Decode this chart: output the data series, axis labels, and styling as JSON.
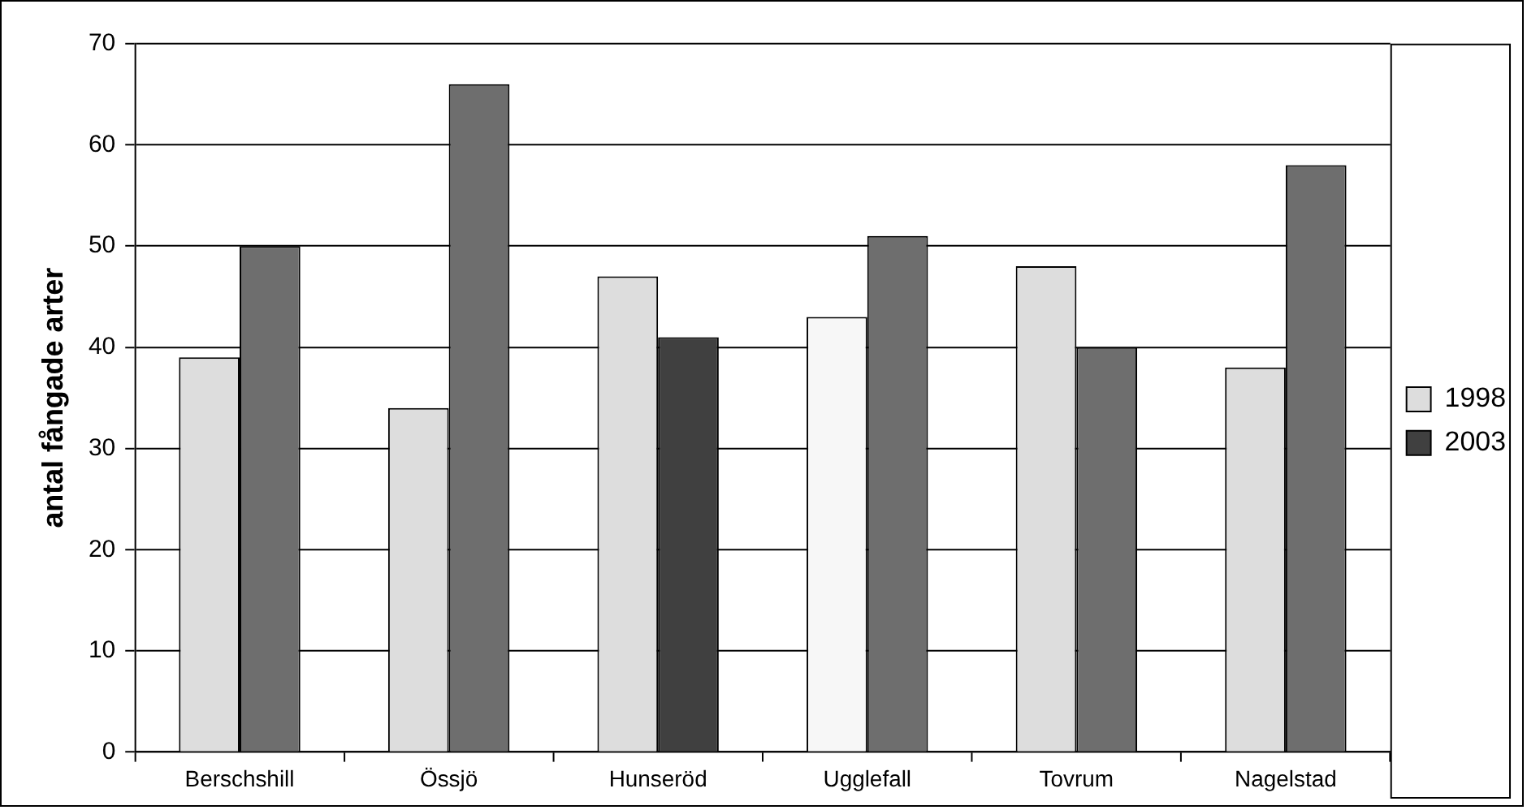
{
  "chart_data": {
    "type": "bar",
    "ylabel": "antal fångade arter",
    "categories": [
      "Berschshill",
      "Össjö",
      "Hunseröd",
      "Ugglefall",
      "Tovrum",
      "Nagelstad"
    ],
    "series": [
      {
        "name": "1998",
        "color": "#dddddd",
        "colors": [
          "#dddddd",
          "#dddddd",
          "#dddddd",
          "#f7f7f7",
          "#dddddd",
          "#dddddd"
        ],
        "values": [
          39,
          34,
          47,
          43,
          48,
          38
        ]
      },
      {
        "name": "2003",
        "color": "#404040",
        "colors": [
          "#6e6e6e",
          "#6e6e6e",
          "#404040",
          "#6e6e6e",
          "#6e6e6e",
          "#6e6e6e"
        ],
        "values": [
          50,
          66,
          41,
          51,
          40,
          58
        ]
      }
    ],
    "ylim": [
      0,
      70
    ],
    "yticks": [
      0,
      10,
      20,
      30,
      40,
      50,
      60,
      70
    ],
    "grid": "y",
    "legend": "right"
  }
}
